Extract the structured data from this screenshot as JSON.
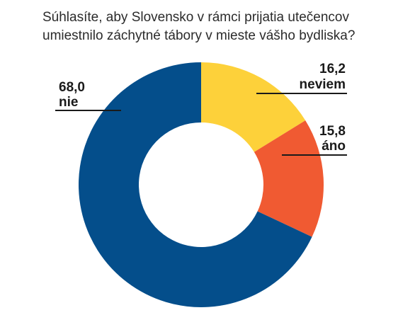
{
  "chart_data": {
    "type": "pie",
    "variant": "donut",
    "title_lines": [
      "Súhlasíte, aby Slovensko v rámci prijatia utečencov",
      "umiestnilo záchytné tábory v mieste vášho bydliska?"
    ],
    "start_angle_deg": 0,
    "direction": "clockwise",
    "slices": [
      {
        "label": "neviem",
        "value": 16.2,
        "display": "16,2",
        "color": "#FDD13A"
      },
      {
        "label": "áno",
        "value": 15.8,
        "display": "15,8",
        "color": "#F05A32"
      },
      {
        "label": "nie",
        "value": 68.0,
        "display": "68,0",
        "color": "#044E8B"
      }
    ]
  }
}
